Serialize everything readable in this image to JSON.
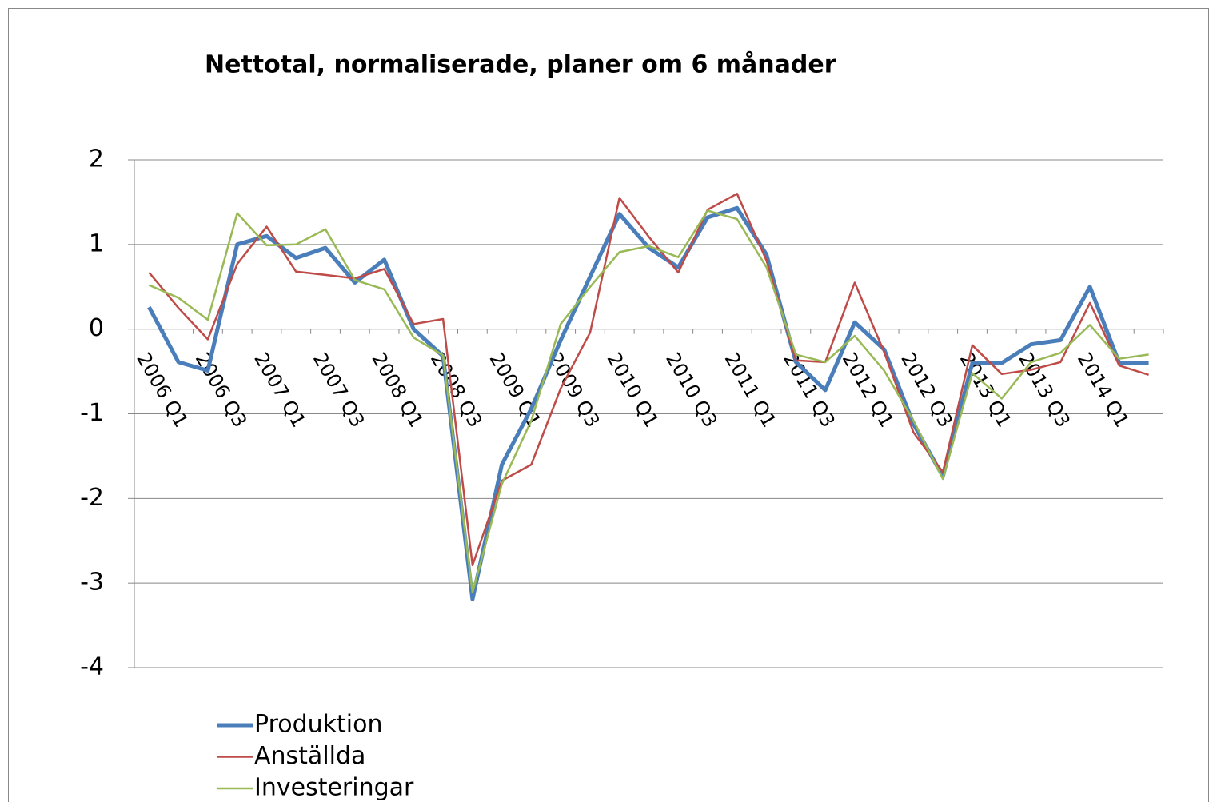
{
  "chart_data": {
    "type": "line",
    "title": "Nettotal, normaliserade, planer om 6 månader",
    "categories": [
      "2006 Q1",
      null,
      "2006 Q3",
      null,
      "2007 Q1",
      null,
      "2007 Q3",
      null,
      "2008 Q1",
      null,
      "2008 Q3",
      null,
      "2009 Q1",
      null,
      "2009 Q3",
      null,
      "2010 Q1",
      null,
      "2010 Q3",
      null,
      "2011 Q1",
      null,
      "2011 Q3",
      null,
      "2012 Q1",
      null,
      "2012 Q3",
      null,
      "2013 Q1",
      null,
      "2013 Q3",
      null,
      "2014 Q1",
      null,
      null
    ],
    "series": [
      {
        "name": "Produktion",
        "color": "#4a7ebb",
        "values": [
          0.26,
          -0.39,
          -0.49,
          1.0,
          1.1,
          0.84,
          0.96,
          0.55,
          0.82,
          0.0,
          -0.32,
          -3.19,
          -1.6,
          -0.94,
          -0.13,
          0.62,
          1.36,
          0.96,
          0.73,
          1.32,
          1.43,
          0.88,
          -0.39,
          -0.72,
          0.08,
          -0.24,
          -1.12,
          -1.74,
          -0.4,
          -0.4,
          -0.18,
          -0.13,
          0.5,
          -0.4,
          -0.4
        ]
      },
      {
        "name": "Anställda",
        "color": "#be4b48",
        "values": [
          0.67,
          0.25,
          -0.12,
          0.77,
          1.21,
          0.68,
          0.64,
          0.6,
          0.71,
          0.06,
          0.12,
          -2.79,
          -1.79,
          -1.6,
          -0.7,
          -0.04,
          1.55,
          1.09,
          0.67,
          1.41,
          1.6,
          0.81,
          -0.37,
          -0.39,
          0.55,
          -0.27,
          -1.22,
          -1.69,
          -0.19,
          -0.53,
          -0.48,
          -0.39,
          0.31,
          -0.43,
          -0.54
        ]
      },
      {
        "name": "Investeringar",
        "color": "#98b954",
        "values": [
          0.52,
          0.37,
          0.11,
          1.37,
          0.99,
          1.0,
          1.18,
          0.58,
          0.47,
          -0.1,
          -0.31,
          -3.11,
          -1.83,
          -1.08,
          0.06,
          0.5,
          0.91,
          0.98,
          0.85,
          1.4,
          1.3,
          0.73,
          -0.3,
          -0.39,
          -0.08,
          -0.49,
          -1.08,
          -1.77,
          -0.52,
          -0.82,
          -0.39,
          -0.28,
          0.05,
          -0.35,
          -0.3
        ]
      }
    ],
    "ylim": [
      -4,
      2
    ],
    "yticks": [
      -4,
      -3,
      -2,
      -1,
      0,
      1,
      2
    ],
    "grid": true,
    "legend": "bottom-left"
  }
}
